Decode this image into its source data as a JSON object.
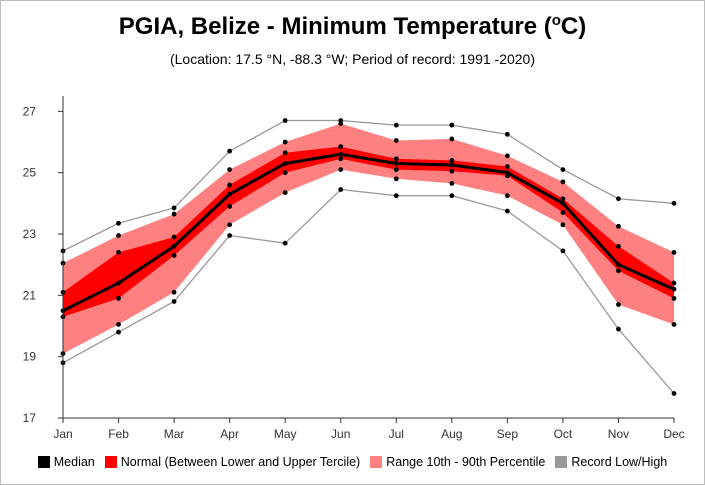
{
  "title_main": "PGIA, Belize - Minimum Temperature (",
  "title_sup": "o",
  "title_end": "C)",
  "subtitle": "(Location: 17.5 °N, -88.3 °W; Period of record: 1991 -2020)",
  "colors": {
    "median": "#000000",
    "normal": "#ff0000",
    "range": "#ff8080",
    "record": "#999999",
    "axis": "#333333"
  },
  "legend": [
    {
      "label": "Median",
      "color": "#000000"
    },
    {
      "label": "Normal (Between Lower and Upper Tercile)",
      "color": "#ff0000"
    },
    {
      "label": "Range 10th - 90th Percentile",
      "color": "#ff8080"
    },
    {
      "label": "Record Low/High",
      "color": "#999999"
    }
  ],
  "chart_data": {
    "type": "line",
    "categories": [
      "Jan",
      "Feb",
      "Mar",
      "Apr",
      "May",
      "Jun",
      "Jul",
      "Aug",
      "Sep",
      "Oct",
      "Nov",
      "Dec"
    ],
    "ylim": [
      17,
      27.5
    ],
    "yticks": [
      17,
      19,
      21,
      23,
      25,
      27
    ],
    "series": [
      {
        "name": "Median",
        "values": [
          20.5,
          21.4,
          22.6,
          24.3,
          25.3,
          25.6,
          25.3,
          25.25,
          25.0,
          24.0,
          22.0,
          21.2
        ]
      },
      {
        "name": "Normal lower",
        "values": [
          20.3,
          20.9,
          22.3,
          23.9,
          25.0,
          25.45,
          25.1,
          25.05,
          24.9,
          23.7,
          21.8,
          20.9
        ]
      },
      {
        "name": "Normal upper",
        "values": [
          21.1,
          22.4,
          22.9,
          24.6,
          25.65,
          25.85,
          25.45,
          25.4,
          25.2,
          24.15,
          22.6,
          21.4
        ]
      },
      {
        "name": "10th percentile",
        "values": [
          19.1,
          20.05,
          21.1,
          23.3,
          24.35,
          25.1,
          24.8,
          24.65,
          24.25,
          23.3,
          20.7,
          20.05
        ]
      },
      {
        "name": "90th percentile",
        "values": [
          22.05,
          22.95,
          23.65,
          25.1,
          26.0,
          26.6,
          26.05,
          26.1,
          25.55,
          24.7,
          23.25,
          22.4
        ]
      },
      {
        "name": "Record Low",
        "values": [
          18.8,
          19.8,
          20.8,
          22.95,
          22.7,
          24.45,
          24.25,
          24.25,
          23.75,
          22.45,
          19.9,
          17.8
        ]
      },
      {
        "name": "Record High",
        "values": [
          22.45,
          23.35,
          23.85,
          25.7,
          26.7,
          26.7,
          26.55,
          26.55,
          26.25,
          25.1,
          24.15,
          24.0
        ]
      }
    ],
    "grid": false,
    "legend_position": "bottom"
  }
}
